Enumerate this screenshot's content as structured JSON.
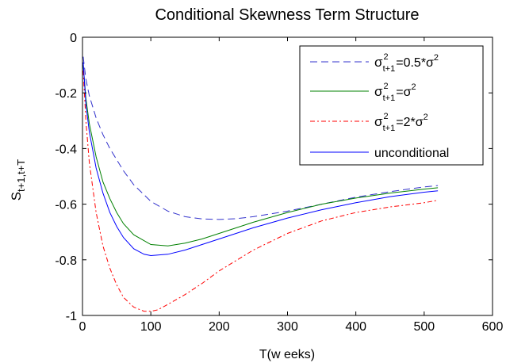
{
  "chart_data": {
    "type": "line",
    "title": "Conditional Skewness Term Structure",
    "xlabel": "T(w eeks)",
    "ylabel": {
      "base": "S",
      "sub": "t+1,t+T"
    },
    "xlim": [
      0,
      600
    ],
    "ylim": [
      -1,
      0
    ],
    "xticks": [
      0,
      100,
      200,
      300,
      400,
      500,
      600
    ],
    "yticks": [
      0,
      -0.2,
      -0.4,
      -0.6,
      -0.8,
      -1
    ],
    "xtick_labels": [
      "0",
      "100",
      "200",
      "300",
      "400",
      "500",
      "600"
    ],
    "ytick_labels": [
      "0",
      "-0.2",
      "-0.4",
      "-0.6",
      "-0.8",
      "-1"
    ],
    "grid": false,
    "legend_position": "top-right",
    "series": [
      {
        "name": "σ²t+1=0.5*σ²",
        "legend": {
          "sym": "σ",
          "sup": "2",
          "sub": "t+1",
          "rest": "=0.5*σ",
          "rest_sup": "2"
        },
        "color": "#3333cc",
        "dash": "dashed",
        "x": [
          1,
          5,
          10,
          20,
          30,
          40,
          50,
          60,
          75,
          100,
          125,
          150,
          175,
          200,
          225,
          250,
          300,
          350,
          400,
          450,
          500,
          520
        ],
        "y": [
          -0.07,
          -0.15,
          -0.21,
          -0.29,
          -0.35,
          -0.4,
          -0.44,
          -0.48,
          -0.53,
          -0.59,
          -0.625,
          -0.645,
          -0.653,
          -0.655,
          -0.652,
          -0.645,
          -0.625,
          -0.6,
          -0.575,
          -0.555,
          -0.538,
          -0.533
        ]
      },
      {
        "name": "σ²t+1=σ²",
        "legend": {
          "sym": "σ",
          "sup": "2",
          "sub": "t+1",
          "rest": "=σ",
          "rest_sup": "2"
        },
        "color": "#008000",
        "dash": "solid",
        "x": [
          1,
          5,
          10,
          20,
          30,
          40,
          50,
          60,
          75,
          100,
          125,
          150,
          175,
          200,
          250,
          300,
          350,
          400,
          450,
          500,
          520
        ],
        "y": [
          -0.1,
          -0.22,
          -0.31,
          -0.43,
          -0.52,
          -0.58,
          -0.63,
          -0.67,
          -0.71,
          -0.745,
          -0.75,
          -0.74,
          -0.725,
          -0.705,
          -0.665,
          -0.63,
          -0.6,
          -0.578,
          -0.56,
          -0.546,
          -0.541
        ]
      },
      {
        "name": "σ²t+1=2*σ²",
        "legend": {
          "sym": "σ",
          "sup": "2",
          "sub": "t+1",
          "rest": "=2*σ",
          "rest_sup": "2"
        },
        "color": "#ff0000",
        "dash": "dashdot",
        "x": [
          1,
          5,
          10,
          20,
          30,
          40,
          50,
          60,
          75,
          90,
          100,
          110,
          125,
          150,
          175,
          200,
          250,
          300,
          350,
          400,
          450,
          500,
          520
        ],
        "y": [
          -0.12,
          -0.3,
          -0.45,
          -0.63,
          -0.75,
          -0.83,
          -0.89,
          -0.935,
          -0.97,
          -0.985,
          -0.985,
          -0.98,
          -0.96,
          -0.925,
          -0.885,
          -0.84,
          -0.765,
          -0.705,
          -0.66,
          -0.63,
          -0.61,
          -0.595,
          -0.586
        ]
      },
      {
        "name": "unconditional",
        "legend": {
          "text": "unconditional"
        },
        "color": "#0000ff",
        "dash": "solid",
        "x": [
          1,
          5,
          10,
          20,
          30,
          40,
          50,
          60,
          75,
          90,
          100,
          125,
          150,
          175,
          200,
          250,
          300,
          350,
          400,
          450,
          500,
          520
        ],
        "y": [
          -0.09,
          -0.24,
          -0.34,
          -0.47,
          -0.56,
          -0.63,
          -0.68,
          -0.72,
          -0.76,
          -0.78,
          -0.785,
          -0.78,
          -0.765,
          -0.745,
          -0.725,
          -0.685,
          -0.65,
          -0.62,
          -0.595,
          -0.573,
          -0.557,
          -0.552
        ]
      }
    ]
  }
}
